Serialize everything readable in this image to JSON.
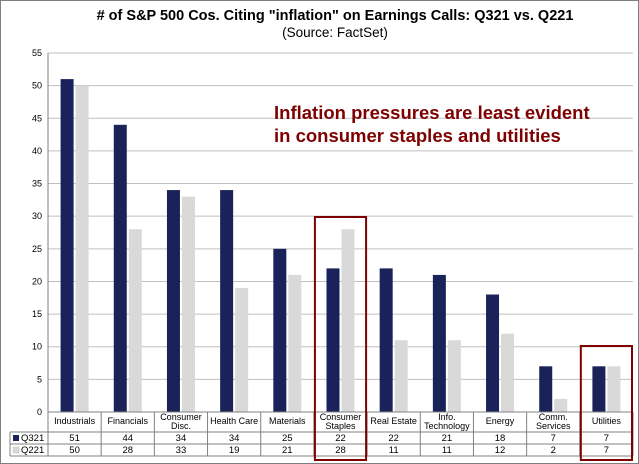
{
  "chart_data": {
    "type": "bar",
    "title": "# of S&P 500 Cos. Citing \"inflation\" on Earnings Calls: Q321 vs. Q221",
    "subtitle": "(Source: FactSet)",
    "categories": [
      [
        "Industrials"
      ],
      [
        "Financials"
      ],
      [
        "Consumer",
        "Disc."
      ],
      [
        "Health Care"
      ],
      [
        "Materials"
      ],
      [
        "Consumer",
        "Staples"
      ],
      [
        "Real Estate"
      ],
      [
        "Info.",
        "Technology"
      ],
      [
        "Energy"
      ],
      [
        "Comm.",
        "Services"
      ],
      [
        "Utilities"
      ]
    ],
    "series": [
      {
        "name": "Q321",
        "color": "#1a2359",
        "values": [
          51,
          44,
          34,
          34,
          25,
          22,
          22,
          21,
          18,
          7,
          7
        ]
      },
      {
        "name": "Q221",
        "color": "#d9d9d9",
        "values": [
          50,
          28,
          33,
          19,
          21,
          28,
          11,
          11,
          12,
          2,
          7
        ]
      }
    ],
    "ylim": [
      0,
      55
    ],
    "yticks": [
      0,
      5,
      10,
      15,
      20,
      25,
      30,
      35,
      40,
      45,
      50,
      55
    ],
    "grid": true,
    "data_table": true,
    "annotation": [
      "Inflation pressures are least evident",
      "in consumer staples and utilities"
    ],
    "annotation_color": "#7f0000",
    "highlighted_categories": [
      5,
      10
    ],
    "gridline_color": "#c0c0c0"
  }
}
